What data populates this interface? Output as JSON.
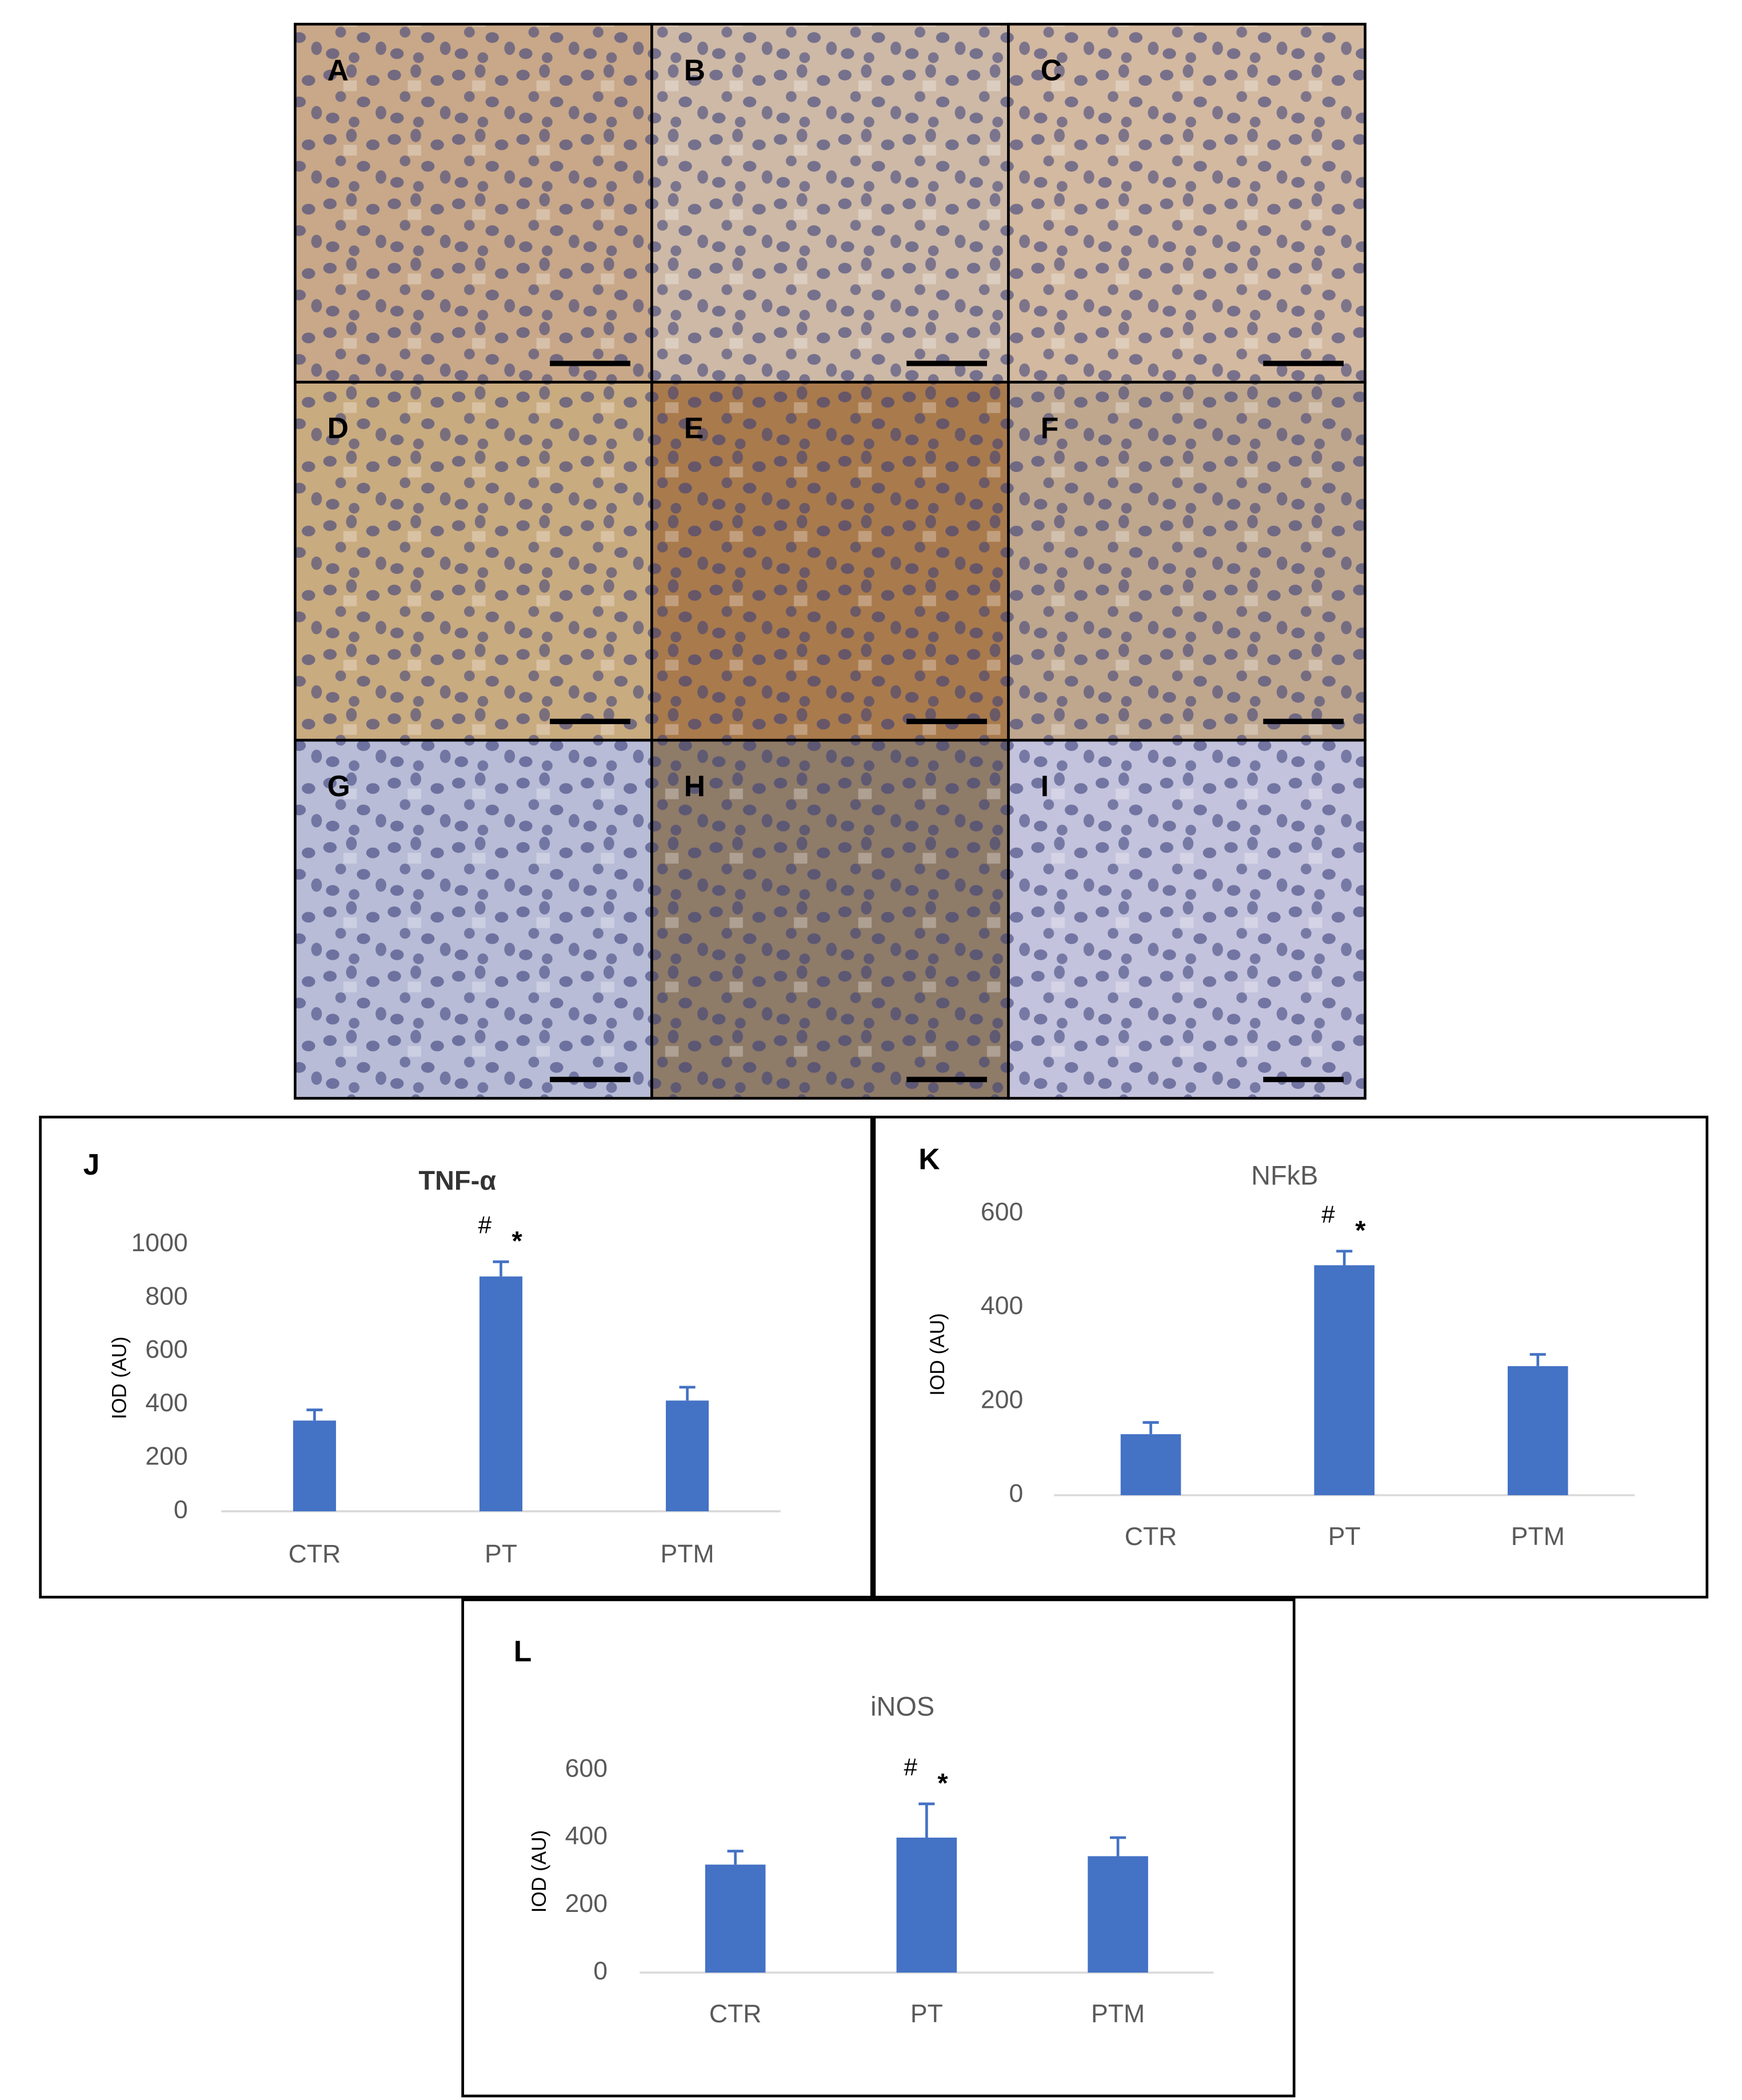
{
  "micrographs": {
    "labels": [
      "A",
      "B",
      "C",
      "D",
      "E",
      "F",
      "G",
      "H",
      "I"
    ]
  },
  "chart_data": [
    {
      "type": "bar",
      "panel": "J",
      "title": "TNF-α",
      "y_label": "IOD (AU)",
      "categories": [
        "CTR",
        "PT",
        "PTM"
      ],
      "values": [
        340,
        880,
        415
      ],
      "errors": [
        40,
        55,
        50
      ],
      "markers": [
        null,
        [
          "#",
          "*"
        ],
        null
      ],
      "color": "#4472c4",
      "ylim": [
        0,
        1000
      ],
      "yticks": [
        0,
        200,
        400,
        600,
        800,
        1000
      ]
    },
    {
      "type": "bar",
      "panel": "K",
      "title": "NFkB",
      "y_label": "IOD (AU)",
      "categories": [
        "CTR",
        "PT",
        "PTM"
      ],
      "values": [
        130,
        490,
        275
      ],
      "errors": [
        25,
        30,
        25
      ],
      "markers": [
        null,
        [
          "#",
          "*"
        ],
        null
      ],
      "color": "#4472c4",
      "ylim": [
        0,
        600
      ],
      "yticks": [
        0,
        200,
        400,
        600
      ]
    },
    {
      "type": "bar",
      "panel": "L",
      "title": "iNOS",
      "y_label": "IOD (AU)",
      "categories": [
        "CTR",
        "PT",
        "PTM"
      ],
      "values": [
        320,
        400,
        345
      ],
      "errors": [
        40,
        100,
        55
      ],
      "markers": [
        null,
        [
          "#",
          "*"
        ],
        null
      ],
      "color": "#4472c4",
      "ylim": [
        0,
        600
      ],
      "yticks": [
        0,
        200,
        400,
        600
      ]
    }
  ]
}
